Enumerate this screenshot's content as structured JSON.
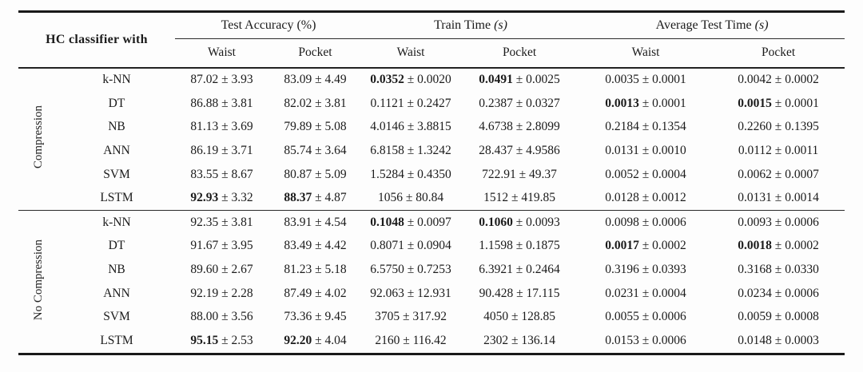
{
  "table": {
    "corner_header": "HC classifier with",
    "pm": "±",
    "column_groups": [
      {
        "label": "Test Accuracy",
        "unit": "(%)"
      },
      {
        "label": "Train Time",
        "unit": "(s)"
      },
      {
        "label": "Average Test Time",
        "unit": "(s)"
      }
    ],
    "sub_headers": [
      "Waist",
      "Pocket",
      "Waist",
      "Pocket",
      "Waist",
      "Pocket"
    ],
    "row_groups": [
      {
        "label": "Compression",
        "rows": [
          {
            "classifier": "k-NN",
            "cells": [
              {
                "value": "87.02",
                "error": "3.93",
                "bold": false
              },
              {
                "value": "83.09",
                "error": "4.49",
                "bold": false
              },
              {
                "value": "0.0352",
                "error": "0.0020",
                "bold": true
              },
              {
                "value": "0.0491",
                "error": "0.0025",
                "bold": true
              },
              {
                "value": "0.0035",
                "error": "0.0001",
                "bold": false
              },
              {
                "value": "0.0042",
                "error": "0.0002",
                "bold": false
              }
            ]
          },
          {
            "classifier": "DT",
            "cells": [
              {
                "value": "86.88",
                "error": "3.81",
                "bold": false
              },
              {
                "value": "82.02",
                "error": "3.81",
                "bold": false
              },
              {
                "value": "0.1121",
                "error": "0.2427",
                "bold": false
              },
              {
                "value": "0.2387",
                "error": "0.0327",
                "bold": false
              },
              {
                "value": "0.0013",
                "error": "0.0001",
                "bold": true
              },
              {
                "value": "0.0015",
                "error": "0.0001",
                "bold": true
              }
            ]
          },
          {
            "classifier": "NB",
            "cells": [
              {
                "value": "81.13",
                "error": "3.69",
                "bold": false
              },
              {
                "value": "79.89",
                "error": "5.08",
                "bold": false
              },
              {
                "value": "4.0146",
                "error": "3.8815",
                "bold": false
              },
              {
                "value": "4.6738",
                "error": "2.8099",
                "bold": false
              },
              {
                "value": "0.2184",
                "error": "0.1354",
                "bold": false
              },
              {
                "value": "0.2260",
                "error": "0.1395",
                "bold": false
              }
            ]
          },
          {
            "classifier": "ANN",
            "cells": [
              {
                "value": "86.19",
                "error": "3.71",
                "bold": false
              },
              {
                "value": "85.74",
                "error": "3.64",
                "bold": false
              },
              {
                "value": "6.8158",
                "error": "1.3242",
                "bold": false
              },
              {
                "value": "28.437",
                "error": "4.9586",
                "bold": false
              },
              {
                "value": "0.0131",
                "error": "0.0010",
                "bold": false
              },
              {
                "value": "0.0112",
                "error": "0.0011",
                "bold": false
              }
            ]
          },
          {
            "classifier": "SVM",
            "cells": [
              {
                "value": "83.55",
                "error": "8.67",
                "bold": false
              },
              {
                "value": "80.87",
                "error": "5.09",
                "bold": false
              },
              {
                "value": "1.5284",
                "error": "0.4350",
                "bold": false
              },
              {
                "value": "722.91",
                "error": "49.37",
                "bold": false
              },
              {
                "value": "0.0052",
                "error": "0.0004",
                "bold": false
              },
              {
                "value": "0.0062",
                "error": "0.0007",
                "bold": false
              }
            ]
          },
          {
            "classifier": "LSTM",
            "cells": [
              {
                "value": "92.93",
                "error": "3.32",
                "bold": true
              },
              {
                "value": "88.37",
                "error": "4.87",
                "bold": true
              },
              {
                "value": "1056",
                "error": "80.84",
                "bold": false
              },
              {
                "value": "1512",
                "error": "419.85",
                "bold": false
              },
              {
                "value": "0.0128",
                "error": "0.0012",
                "bold": false
              },
              {
                "value": "0.0131",
                "error": "0.0014",
                "bold": false
              }
            ]
          }
        ]
      },
      {
        "label": "No Compression",
        "rows": [
          {
            "classifier": "k-NN",
            "cells": [
              {
                "value": "92.35",
                "error": "3.81",
                "bold": false
              },
              {
                "value": "83.91",
                "error": "4.54",
                "bold": false
              },
              {
                "value": "0.1048",
                "error": "0.0097",
                "bold": true
              },
              {
                "value": "0.1060",
                "error": "0.0093",
                "bold": true
              },
              {
                "value": "0.0098",
                "error": "0.0006",
                "bold": false
              },
              {
                "value": "0.0093",
                "error": "0.0006",
                "bold": false
              }
            ]
          },
          {
            "classifier": "DT",
            "cells": [
              {
                "value": "91.67",
                "error": "3.95",
                "bold": false
              },
              {
                "value": "83.49",
                "error": "4.42",
                "bold": false
              },
              {
                "value": "0.8071",
                "error": "0.0904",
                "bold": false
              },
              {
                "value": "1.1598",
                "error": "0.1875",
                "bold": false
              },
              {
                "value": "0.0017",
                "error": "0.0002",
                "bold": true
              },
              {
                "value": "0.0018",
                "error": "0.0002",
                "bold": true
              }
            ]
          },
          {
            "classifier": "NB",
            "cells": [
              {
                "value": "89.60",
                "error": "2.67",
                "bold": false
              },
              {
                "value": "81.23",
                "error": "5.18",
                "bold": false
              },
              {
                "value": "6.5750",
                "error": "0.7253",
                "bold": false
              },
              {
                "value": "6.3921",
                "error": "0.2464",
                "bold": false
              },
              {
                "value": "0.3196",
                "error": "0.0393",
                "bold": false
              },
              {
                "value": "0.3168",
                "error": "0.0330",
                "bold": false
              }
            ]
          },
          {
            "classifier": "ANN",
            "cells": [
              {
                "value": "92.19",
                "error": "2.28",
                "bold": false
              },
              {
                "value": "87.49",
                "error": "4.02",
                "bold": false
              },
              {
                "value": "92.063",
                "error": "12.931",
                "bold": false
              },
              {
                "value": "90.428",
                "error": "17.115",
                "bold": false
              },
              {
                "value": "0.0231",
                "error": "0.0004",
                "bold": false
              },
              {
                "value": "0.0234",
                "error": "0.0006",
                "bold": false
              }
            ]
          },
          {
            "classifier": "SVM",
            "cells": [
              {
                "value": "88.00",
                "error": "3.56",
                "bold": false
              },
              {
                "value": "73.36",
                "error": "9.45",
                "bold": false
              },
              {
                "value": "3705",
                "error": "317.92",
                "bold": false
              },
              {
                "value": "4050",
                "error": "128.85",
                "bold": false
              },
              {
                "value": "0.0055",
                "error": "0.0006",
                "bold": false
              },
              {
                "value": "0.0059",
                "error": "0.0008",
                "bold": false
              }
            ]
          },
          {
            "classifier": "LSTM",
            "cells": [
              {
                "value": "95.15",
                "error": "2.53",
                "bold": true
              },
              {
                "value": "92.20",
                "error": "4.04",
                "bold": true
              },
              {
                "value": "2160",
                "error": "116.42",
                "bold": false
              },
              {
                "value": "2302",
                "error": "136.14",
                "bold": false
              },
              {
                "value": "0.0153",
                "error": "0.0006",
                "bold": false
              },
              {
                "value": "0.0148",
                "error": "0.0003",
                "bold": false
              }
            ]
          }
        ]
      }
    ]
  }
}
